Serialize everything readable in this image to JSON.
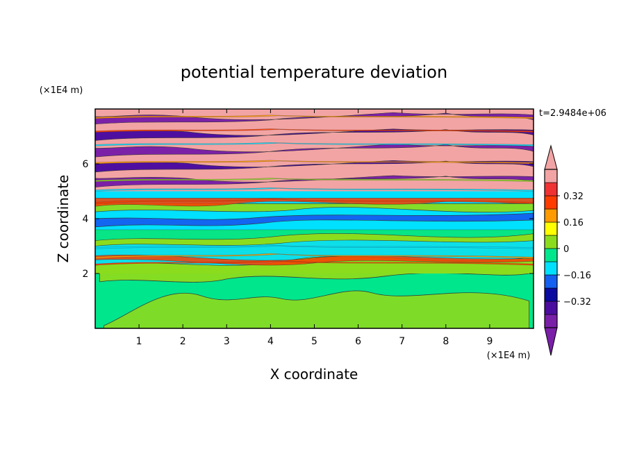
{
  "chart_data": {
    "type": "heatmap",
    "title": "potential temperature deviation",
    "xlabel": "X coordinate",
    "ylabel": "Z coordinate",
    "x_unit": "(×1E4 m)",
    "y_unit": "(×1E4 m)",
    "time_label": "t=2.9484e+06",
    "xlim": [
      0,
      10
    ],
    "ylim": [
      0,
      8
    ],
    "x_ticks": [
      "1",
      "2",
      "3",
      "4",
      "5",
      "6",
      "7",
      "8",
      "9"
    ],
    "y_ticks": [
      "2",
      "4",
      "6"
    ],
    "colorbar": {
      "levels": [
        -0.48,
        -0.4,
        -0.32,
        -0.24,
        -0.16,
        -0.08,
        0,
        0.08,
        0.16,
        0.24,
        0.32,
        0.4,
        0.48
      ],
      "labels": [
        "-0.32",
        "-0.16",
        "0",
        "0.16",
        "0.32"
      ],
      "colors": [
        "#7a1fa8",
        "#4b0da0",
        "#0a0aa0",
        "#1460f0",
        "#00e0ff",
        "#00e68c",
        "#8cdc1e",
        "#ffff00",
        "#ff9a00",
        "#ff3c00",
        "#f03232",
        "#f2a4a4"
      ],
      "extend": "both"
    },
    "bands": [
      {
        "z": [
          0.0,
          2.0
        ],
        "desc": "weak positive/near zero cells",
        "dominant": [
          "#00e68c",
          "#8cdc1e"
        ]
      },
      {
        "z": [
          2.0,
          3.5
        ],
        "desc": "thin mixed layer with strong variation",
        "dominant": [
          "#8cdc1e",
          "#00e68c",
          "#00e0ff",
          "#ff9a00"
        ]
      },
      {
        "z": [
          3.5,
          5.0
        ],
        "desc": "negative cyan/blue layer",
        "dominant": [
          "#00e0ff",
          "#1460f0",
          "#8cdc1e",
          "#ff3c00"
        ]
      },
      {
        "z": [
          5.0,
          8.0
        ],
        "desc": "alternating strong layers",
        "dominant": [
          "#f2a4a4",
          "#7a1fa8",
          "#4b0da0"
        ]
      }
    ]
  }
}
